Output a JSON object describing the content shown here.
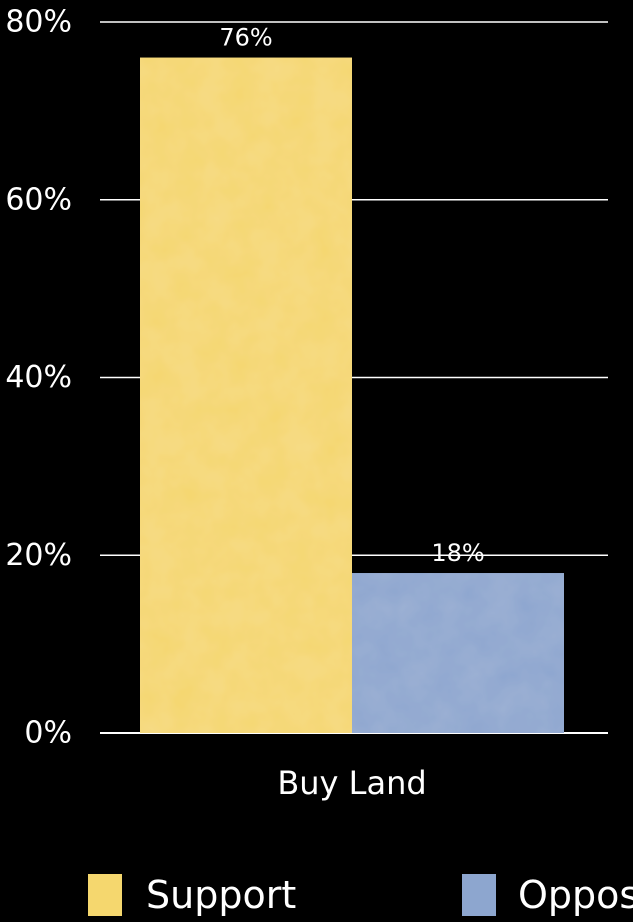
{
  "chart_data": {
    "type": "bar",
    "categories": [
      "Buy Land"
    ],
    "series": [
      {
        "name": "Support",
        "values": [
          76
        ],
        "label": "76%",
        "color": "#F5D76E"
      },
      {
        "name": "Oppose",
        "values": [
          18
        ],
        "label": "18%",
        "color": "#8DA6CF"
      }
    ],
    "ylim": [
      0,
      80
    ],
    "yticks": [
      "0%",
      "20%",
      "40%",
      "60%",
      "80%"
    ],
    "ytick_values": [
      0,
      20,
      40,
      60,
      80
    ],
    "grid": true,
    "legend_position": "bottom"
  }
}
